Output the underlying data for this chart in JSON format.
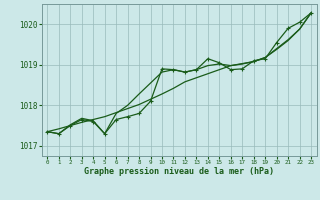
{
  "title": "Graphe pression niveau de la mer (hPa)",
  "background_color": "#cce8e8",
  "plot_bg_color": "#cce8e8",
  "grid_color": "#99bbbb",
  "line_color": "#1a5c1a",
  "marker_color": "#1a5c1a",
  "xlim": [
    -0.5,
    23.5
  ],
  "ylim": [
    1016.75,
    1020.5
  ],
  "yticks": [
    1017,
    1018,
    1019,
    1020
  ],
  "xticks": [
    0,
    1,
    2,
    3,
    4,
    5,
    6,
    7,
    8,
    9,
    10,
    11,
    12,
    13,
    14,
    15,
    16,
    17,
    18,
    19,
    20,
    21,
    22,
    23
  ],
  "hours": [
    0,
    1,
    2,
    3,
    4,
    5,
    6,
    7,
    8,
    9,
    10,
    11,
    12,
    13,
    14,
    15,
    16,
    17,
    18,
    19,
    20,
    21,
    22,
    23
  ],
  "pressure_jagged": [
    1017.35,
    1017.3,
    1017.5,
    1017.65,
    1017.6,
    1017.3,
    1017.65,
    1017.72,
    1017.8,
    1018.1,
    1018.9,
    1018.88,
    1018.82,
    1018.88,
    1019.15,
    1019.05,
    1018.88,
    1018.9,
    1019.1,
    1019.15,
    1019.55,
    1019.9,
    1020.05,
    1020.28
  ],
  "pressure_smooth": [
    1017.35,
    1017.3,
    1017.52,
    1017.68,
    1017.62,
    1017.3,
    1017.8,
    1018.0,
    1018.28,
    1018.55,
    1018.82,
    1018.88,
    1018.82,
    1018.88,
    1018.98,
    1019.02,
    1018.98,
    1019.02,
    1019.08,
    1019.18,
    1019.4,
    1019.62,
    1019.88,
    1020.28
  ],
  "pressure_trend": [
    1017.35,
    1017.42,
    1017.5,
    1017.58,
    1017.65,
    1017.72,
    1017.82,
    1017.92,
    1018.02,
    1018.15,
    1018.28,
    1018.42,
    1018.58,
    1018.68,
    1018.78,
    1018.88,
    1018.98,
    1019.03,
    1019.08,
    1019.18,
    1019.38,
    1019.6,
    1019.88,
    1020.28
  ]
}
